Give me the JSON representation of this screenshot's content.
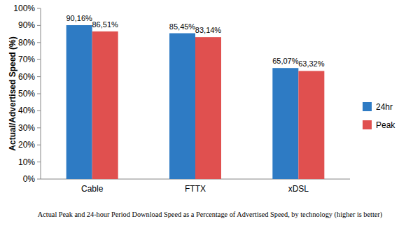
{
  "chart_data": {
    "type": "bar",
    "title": "Actual Peak and 24-hour Period Download Speed as a Percentage of Advertised Speed, by technology (higher is better)",
    "y_label": "Actual/Advertised Speed (%)",
    "categories": [
      "Cable",
      "FTTX",
      "xDSL"
    ],
    "series": [
      {
        "name": "24hr",
        "color": "#2E7BC4",
        "values": [
          90.16,
          85.45,
          65.07
        ],
        "value_labels": [
          "90,16%",
          "85,45%",
          "65,07%"
        ]
      },
      {
        "name": "Peak",
        "color": "#E0504F",
        "values": [
          86.51,
          83.14,
          63.32
        ],
        "value_labels": [
          "86,51%",
          "83,14%",
          "63,32%"
        ]
      }
    ],
    "ylim": [
      0,
      100
    ],
    "yticks": [
      {
        "value": 0,
        "label": "0%"
      },
      {
        "value": 10,
        "label": "10%"
      },
      {
        "value": 20,
        "label": "20%"
      },
      {
        "value": 30,
        "label": "30%"
      },
      {
        "value": 40,
        "label": "40%"
      },
      {
        "value": 50,
        "label": "50%"
      },
      {
        "value": 60,
        "label": "60%"
      },
      {
        "value": 70,
        "label": "70%"
      },
      {
        "value": 80,
        "label": "80%"
      },
      {
        "value": 90,
        "label": "90%"
      },
      {
        "value": 100,
        "label": "100%"
      }
    ],
    "grid": false,
    "legend": "right",
    "data_labels": true
  }
}
